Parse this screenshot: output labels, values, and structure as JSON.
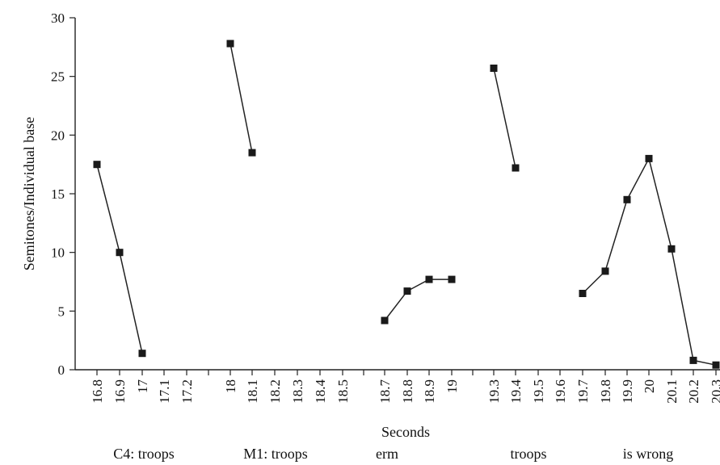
{
  "chart_data": {
    "type": "line",
    "xlabel": "Seconds",
    "ylabel": "Semitones/Individual base",
    "ylim": [
      0,
      30
    ],
    "yticks": [
      "0",
      "5",
      "10",
      "15",
      "20",
      "25",
      "30"
    ],
    "xtick_labels": [
      "16.8",
      "16.9",
      "17",
      "17.1",
      "17.2",
      "18",
      "18.1",
      "18.2",
      "18.3",
      "18.4",
      "18.5",
      "18.7",
      "18.8",
      "18.9",
      "19",
      "19.3",
      "19.4",
      "19.5",
      "19.6",
      "19.7",
      "19.8",
      "19.9",
      "20",
      "20.1",
      "20.2",
      "20.3"
    ],
    "group_labels": [
      "C4: troops",
      "M1: troops",
      "erm",
      "troops",
      "is wrong"
    ],
    "segments": [
      {
        "points": [
          [
            16.8,
            17.5
          ],
          [
            16.9,
            10.0
          ],
          [
            17.0,
            1.4
          ]
        ]
      },
      {
        "points": [
          [
            18.0,
            27.8
          ],
          [
            18.1,
            18.5
          ]
        ]
      },
      {
        "points": [
          [
            18.7,
            4.2
          ],
          [
            18.8,
            6.7
          ],
          [
            18.9,
            7.7
          ],
          [
            19.0,
            7.7
          ]
        ]
      },
      {
        "points": [
          [
            19.3,
            25.7
          ],
          [
            19.4,
            17.2
          ]
        ]
      },
      {
        "points": [
          [
            19.7,
            6.5
          ],
          [
            19.8,
            8.4
          ],
          [
            19.9,
            14.5
          ],
          [
            20.0,
            18.0
          ],
          [
            20.1,
            10.3
          ],
          [
            20.2,
            0.8
          ],
          [
            20.3,
            0.4
          ]
        ]
      }
    ],
    "grid": false,
    "legend": "none"
  }
}
